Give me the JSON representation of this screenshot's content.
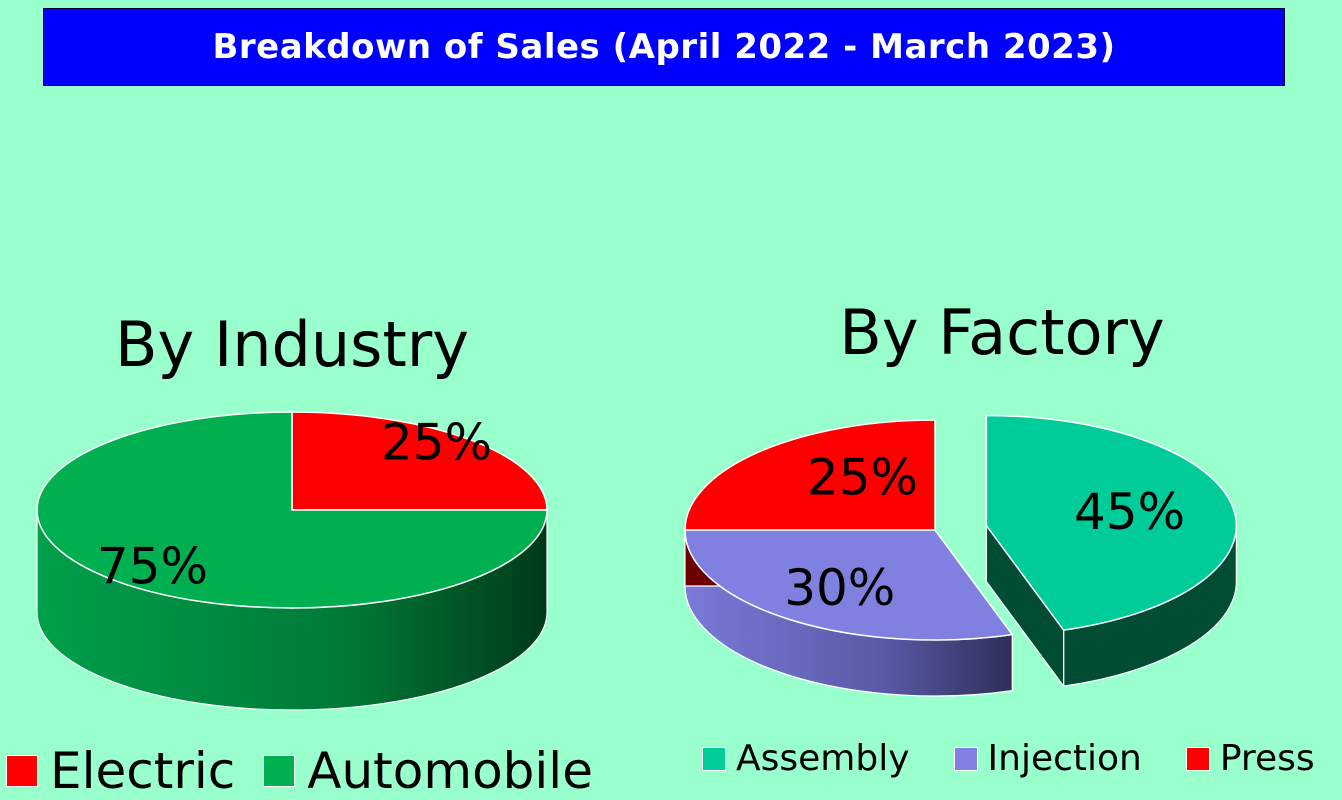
{
  "title": "Breakdown of Sales (April 2022 - March 2023)",
  "chart_data": [
    {
      "type": "pie",
      "title": "By Industry",
      "slices": [
        {
          "label": "Electric",
          "value": 25,
          "display": "25%",
          "color": "#ff0000",
          "side_color": "#6b0000"
        },
        {
          "label": "Automobile",
          "value": 75,
          "display": "75%",
          "color": "#00b050",
          "side_color": "#005a28"
        }
      ],
      "legend": "bottom-left"
    },
    {
      "type": "pie",
      "title": "By Factory",
      "slices": [
        {
          "label": "Assembly",
          "value": 45,
          "display": "45%",
          "color": "#00cc99",
          "side_color": "#004d33",
          "exploded": true
        },
        {
          "label": "Injection",
          "value": 30,
          "display": "30%",
          "color": "#8080e0",
          "side_color": "#3a3a6e"
        },
        {
          "label": "Press",
          "value": 25,
          "display": "25%",
          "color": "#ff0000",
          "side_color": "#6b0000"
        }
      ],
      "legend": "bottom-right"
    }
  ]
}
